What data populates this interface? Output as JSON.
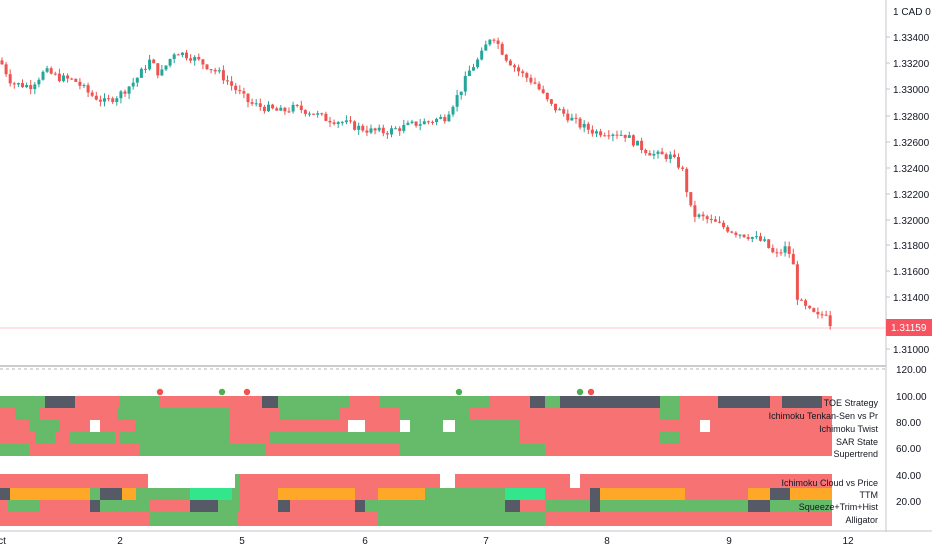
{
  "price_scale": {
    "currency_label": "1 CAD 0",
    "ticks": [
      "1.33400",
      "1.33200",
      "1.33000",
      "1.32800",
      "1.32600",
      "1.32400",
      "1.32200",
      "1.32000",
      "1.31800",
      "1.31600",
      "1.31400",
      "1.31000"
    ],
    "current_price": "1.31159",
    "current_color": "#f7525f"
  },
  "indicator_scale": {
    "ticks": [
      "120.00",
      "100.00",
      "80.00",
      "60.00",
      "40.00",
      "20.00"
    ]
  },
  "time_axis": {
    "labels": [
      "ct",
      "2",
      "5",
      "6",
      "7",
      "8",
      "9",
      "12"
    ]
  },
  "indicator_rows": [
    "TOE Strategy",
    "Ichimoku Tenkan-Sen vs Pr",
    "Ichimoku Twist",
    "SAR State",
    "Supertrend",
    "Ichimoku Cloud vs Price",
    "TTM",
    "Squeeze+Trim+Hist",
    "Alligator"
  ],
  "colors": {
    "up": "#26a69a",
    "down": "#ef5350",
    "panel_green": "#66bb6a",
    "panel_red": "#f77272",
    "panel_dark": "#555a66",
    "panel_orange": "#ffa726",
    "panel_mint": "#33e68c"
  },
  "chart_data": {
    "type": "candlestick",
    "x_axis_labels": [
      "ct",
      "2",
      "5",
      "6",
      "7",
      "8",
      "9",
      "12"
    ],
    "y_range": [
      1.3097,
      1.3356
    ],
    "close_path": [
      [
        0,
        1.3315
      ],
      [
        12,
        1.3298
      ],
      [
        30,
        1.3296
      ],
      [
        45,
        1.3307
      ],
      [
        60,
        1.3302
      ],
      [
        75,
        1.33
      ],
      [
        90,
        1.329
      ],
      [
        105,
        1.3284
      ],
      [
        120,
        1.329
      ],
      [
        135,
        1.33
      ],
      [
        150,
        1.3315
      ],
      [
        160,
        1.3304
      ],
      [
        175,
        1.3322
      ],
      [
        190,
        1.3318
      ],
      [
        205,
        1.3312
      ],
      [
        220,
        1.3305
      ],
      [
        235,
        1.3294
      ],
      [
        250,
        1.3283
      ],
      [
        265,
        1.328
      ],
      [
        280,
        1.3277
      ],
      [
        295,
        1.328
      ],
      [
        310,
        1.3277
      ],
      [
        325,
        1.3272
      ],
      [
        340,
        1.327
      ],
      [
        355,
        1.3266
      ],
      [
        370,
        1.3263
      ],
      [
        385,
        1.3262
      ],
      [
        400,
        1.3265
      ],
      [
        415,
        1.3268
      ],
      [
        430,
        1.327
      ],
      [
        445,
        1.3273
      ],
      [
        460,
        1.3292
      ],
      [
        470,
        1.3308
      ],
      [
        480,
        1.3317
      ],
      [
        492,
        1.3335
      ],
      [
        505,
        1.3318
      ],
      [
        520,
        1.3306
      ],
      [
        535,
        1.3298
      ],
      [
        550,
        1.3282
      ],
      [
        565,
        1.3275
      ],
      [
        580,
        1.3267
      ],
      [
        595,
        1.3262
      ],
      [
        610,
        1.3262
      ],
      [
        625,
        1.326
      ],
      [
        640,
        1.3251
      ],
      [
        655,
        1.3245
      ],
      [
        670,
        1.3244
      ],
      [
        682,
        1.3235
      ],
      [
        692,
        1.3201
      ],
      [
        705,
        1.3198
      ],
      [
        720,
        1.3193
      ],
      [
        735,
        1.3188
      ],
      [
        750,
        1.3185
      ],
      [
        765,
        1.318
      ],
      [
        775,
        1.317
      ],
      [
        785,
        1.3176
      ],
      [
        792,
        1.317
      ],
      [
        798,
        1.3137
      ],
      [
        808,
        1.313
      ],
      [
        818,
        1.3125
      ],
      [
        826,
        1.3129
      ],
      [
        834,
        1.3113
      ]
    ]
  }
}
